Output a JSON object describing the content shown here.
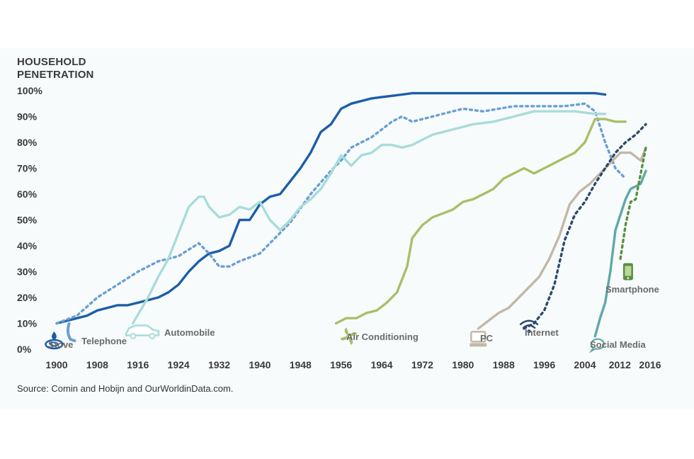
{
  "chart_data": {
    "type": "line",
    "title": "HOUSEHOLD PENETRATION",
    "source": "Source: Comin and Hobijn and OurWorldinData.com.",
    "xlim": [
      1900,
      2016
    ],
    "ylim": [
      0,
      100
    ],
    "x_ticks": [
      "1900",
      "1908",
      "1916",
      "1924",
      "1932",
      "1940",
      "1948",
      "1956",
      "1964",
      "1972",
      "1980",
      "1988",
      "1996",
      "2004",
      "2012",
      "2016"
    ],
    "y_ticks": [
      "0%",
      "10%",
      "20%",
      "30%",
      "40%",
      "50%",
      "60%",
      "70%",
      "80%",
      "90%",
      "100%"
    ],
    "series": [
      {
        "name": "Stove",
        "color": "#1c5ea8",
        "dash": false,
        "icon": "stove-icon",
        "points": [
          [
            1900,
            10
          ],
          [
            1904,
            12
          ],
          [
            1906,
            13
          ],
          [
            1908,
            15
          ],
          [
            1910,
            16
          ],
          [
            1912,
            17
          ],
          [
            1914,
            17
          ],
          [
            1916,
            18
          ],
          [
            1918,
            19
          ],
          [
            1920,
            20
          ],
          [
            1922,
            22
          ],
          [
            1924,
            25
          ],
          [
            1926,
            30
          ],
          [
            1928,
            34
          ],
          [
            1930,
            37
          ],
          [
            1932,
            38
          ],
          [
            1934,
            40
          ],
          [
            1936,
            50
          ],
          [
            1938,
            50
          ],
          [
            1940,
            56
          ],
          [
            1942,
            59
          ],
          [
            1944,
            60
          ],
          [
            1946,
            65
          ],
          [
            1948,
            70
          ],
          [
            1950,
            76
          ],
          [
            1952,
            84
          ],
          [
            1954,
            87
          ],
          [
            1956,
            93
          ],
          [
            1958,
            95
          ],
          [
            1960,
            96
          ],
          [
            1962,
            97
          ],
          [
            1964,
            97.5
          ],
          [
            1966,
            98
          ],
          [
            1968,
            98.5
          ],
          [
            1970,
            99
          ],
          [
            1980,
            99
          ],
          [
            1990,
            99
          ],
          [
            2000,
            99
          ],
          [
            2006,
            99
          ],
          [
            2008,
            98.5
          ]
        ]
      },
      {
        "name": "Telephone",
        "color": "#6a9fd3",
        "dash": true,
        "icon": "telephone-icon",
        "points": [
          [
            1900,
            10
          ],
          [
            1904,
            13
          ],
          [
            1908,
            20
          ],
          [
            1912,
            25
          ],
          [
            1916,
            30
          ],
          [
            1920,
            34
          ],
          [
            1924,
            36
          ],
          [
            1928,
            41
          ],
          [
            1930,
            37
          ],
          [
            1932,
            32
          ],
          [
            1934,
            32
          ],
          [
            1936,
            34
          ],
          [
            1940,
            37
          ],
          [
            1944,
            45
          ],
          [
            1946,
            49
          ],
          [
            1950,
            60
          ],
          [
            1954,
            69
          ],
          [
            1956,
            73
          ],
          [
            1958,
            78
          ],
          [
            1962,
            82
          ],
          [
            1966,
            88
          ],
          [
            1968,
            90
          ],
          [
            1970,
            88
          ],
          [
            1974,
            90
          ],
          [
            1980,
            93
          ],
          [
            1984,
            92
          ],
          [
            1990,
            94
          ],
          [
            1996,
            94
          ],
          [
            2000,
            94
          ],
          [
            2004,
            95
          ],
          [
            2006,
            92
          ],
          [
            2008,
            80
          ],
          [
            2010,
            70
          ],
          [
            2012,
            66
          ]
        ]
      },
      {
        "name": "Automobile",
        "color": "#a8dcd9",
        "dash": false,
        "icon": "automobile-icon",
        "points": [
          [
            1915,
            10
          ],
          [
            1918,
            20
          ],
          [
            1920,
            28
          ],
          [
            1922,
            35
          ],
          [
            1924,
            45
          ],
          [
            1926,
            55
          ],
          [
            1928,
            59
          ],
          [
            1929,
            59
          ],
          [
            1930,
            55
          ],
          [
            1932,
            51
          ],
          [
            1934,
            52
          ],
          [
            1936,
            55
          ],
          [
            1938,
            54
          ],
          [
            1940,
            57
          ],
          [
            1942,
            50
          ],
          [
            1944,
            46
          ],
          [
            1946,
            50
          ],
          [
            1948,
            55
          ],
          [
            1950,
            58
          ],
          [
            1952,
            62
          ],
          [
            1954,
            68
          ],
          [
            1956,
            75
          ],
          [
            1958,
            71
          ],
          [
            1960,
            75
          ],
          [
            1962,
            76
          ],
          [
            1964,
            79
          ],
          [
            1966,
            79
          ],
          [
            1968,
            78
          ],
          [
            1970,
            79
          ],
          [
            1972,
            81
          ],
          [
            1974,
            83
          ],
          [
            1978,
            85
          ],
          [
            1982,
            87
          ],
          [
            1986,
            88
          ],
          [
            1990,
            90
          ],
          [
            1994,
            92
          ],
          [
            1998,
            92
          ],
          [
            2002,
            92
          ],
          [
            2006,
            91
          ],
          [
            2008,
            91
          ]
        ]
      },
      {
        "name": "Air Conditioning",
        "color": "#a9bf67",
        "dash": false,
        "icon": "air-conditioning-icon",
        "points": [
          [
            1955,
            10
          ],
          [
            1957,
            12
          ],
          [
            1959,
            12
          ],
          [
            1961,
            14
          ],
          [
            1963,
            15
          ],
          [
            1965,
            18
          ],
          [
            1967,
            22
          ],
          [
            1969,
            32
          ],
          [
            1970,
            43
          ],
          [
            1972,
            48
          ],
          [
            1974,
            51
          ],
          [
            1978,
            54
          ],
          [
            1980,
            57
          ],
          [
            1982,
            58
          ],
          [
            1984,
            60
          ],
          [
            1986,
            62
          ],
          [
            1988,
            66
          ],
          [
            1990,
            68
          ],
          [
            1992,
            70
          ],
          [
            1994,
            68
          ],
          [
            1996,
            70
          ],
          [
            1998,
            72
          ],
          [
            2000,
            74
          ],
          [
            2002,
            76
          ],
          [
            2004,
            80
          ],
          [
            2006,
            89
          ],
          [
            2008,
            89
          ],
          [
            2010,
            88
          ],
          [
            2012,
            88
          ]
        ]
      },
      {
        "name": "PC",
        "color": "#c2b8a8",
        "dash": false,
        "icon": "pc-icon",
        "points": [
          [
            1983,
            8
          ],
          [
            1985,
            11
          ],
          [
            1987,
            14
          ],
          [
            1989,
            16
          ],
          [
            1991,
            20
          ],
          [
            1993,
            24
          ],
          [
            1995,
            28
          ],
          [
            1997,
            35
          ],
          [
            1999,
            44
          ],
          [
            2001,
            56
          ],
          [
            2003,
            61
          ],
          [
            2005,
            64
          ],
          [
            2007,
            68
          ],
          [
            2009,
            72
          ],
          [
            2011,
            76
          ],
          [
            2013,
            76
          ],
          [
            2015,
            73
          ],
          [
            2016,
            78
          ]
        ]
      },
      {
        "name": "Internet",
        "color": "#2d4a6b",
        "dash": true,
        "icon": "internet-icon",
        "points": [
          [
            1992,
            8
          ],
          [
            1994,
            10
          ],
          [
            1996,
            15
          ],
          [
            1998,
            25
          ],
          [
            2000,
            42
          ],
          [
            2002,
            52
          ],
          [
            2004,
            57
          ],
          [
            2006,
            64
          ],
          [
            2008,
            70
          ],
          [
            2010,
            76
          ],
          [
            2012,
            80
          ],
          [
            2014,
            83
          ],
          [
            2016,
            87
          ]
        ]
      },
      {
        "name": "Social Media",
        "color": "#5fa8a8",
        "dash": false,
        "icon": "social-media-icon",
        "points": [
          [
            2006,
            5
          ],
          [
            2007,
            12
          ],
          [
            2008,
            18
          ],
          [
            2009,
            30
          ],
          [
            2010,
            46
          ],
          [
            2011,
            52
          ],
          [
            2012,
            58
          ],
          [
            2013,
            62
          ],
          [
            2014,
            63
          ],
          [
            2015,
            64
          ],
          [
            2016,
            69
          ]
        ]
      },
      {
        "name": "Smartphone",
        "color": "#5a8f3f",
        "dash": true,
        "icon": "smartphone-icon",
        "points": [
          [
            2011,
            35
          ],
          [
            2012,
            48
          ],
          [
            2013,
            57
          ],
          [
            2014,
            58
          ],
          [
            2015,
            68
          ],
          [
            2016,
            78
          ]
        ]
      }
    ],
    "labels": [
      {
        "series": "Stove",
        "text": "Stove"
      },
      {
        "series": "Telephone",
        "text": "Telephone"
      },
      {
        "series": "Automobile",
        "text": "Automobile"
      },
      {
        "series": "Air Conditioning",
        "text": "Air Conditioning"
      },
      {
        "series": "PC",
        "text": "PC"
      },
      {
        "series": "Internet",
        "text": "Internet"
      },
      {
        "series": "Social Media",
        "text": "Social Media"
      },
      {
        "series": "Smartphone",
        "text": "Smartphone"
      }
    ]
  }
}
